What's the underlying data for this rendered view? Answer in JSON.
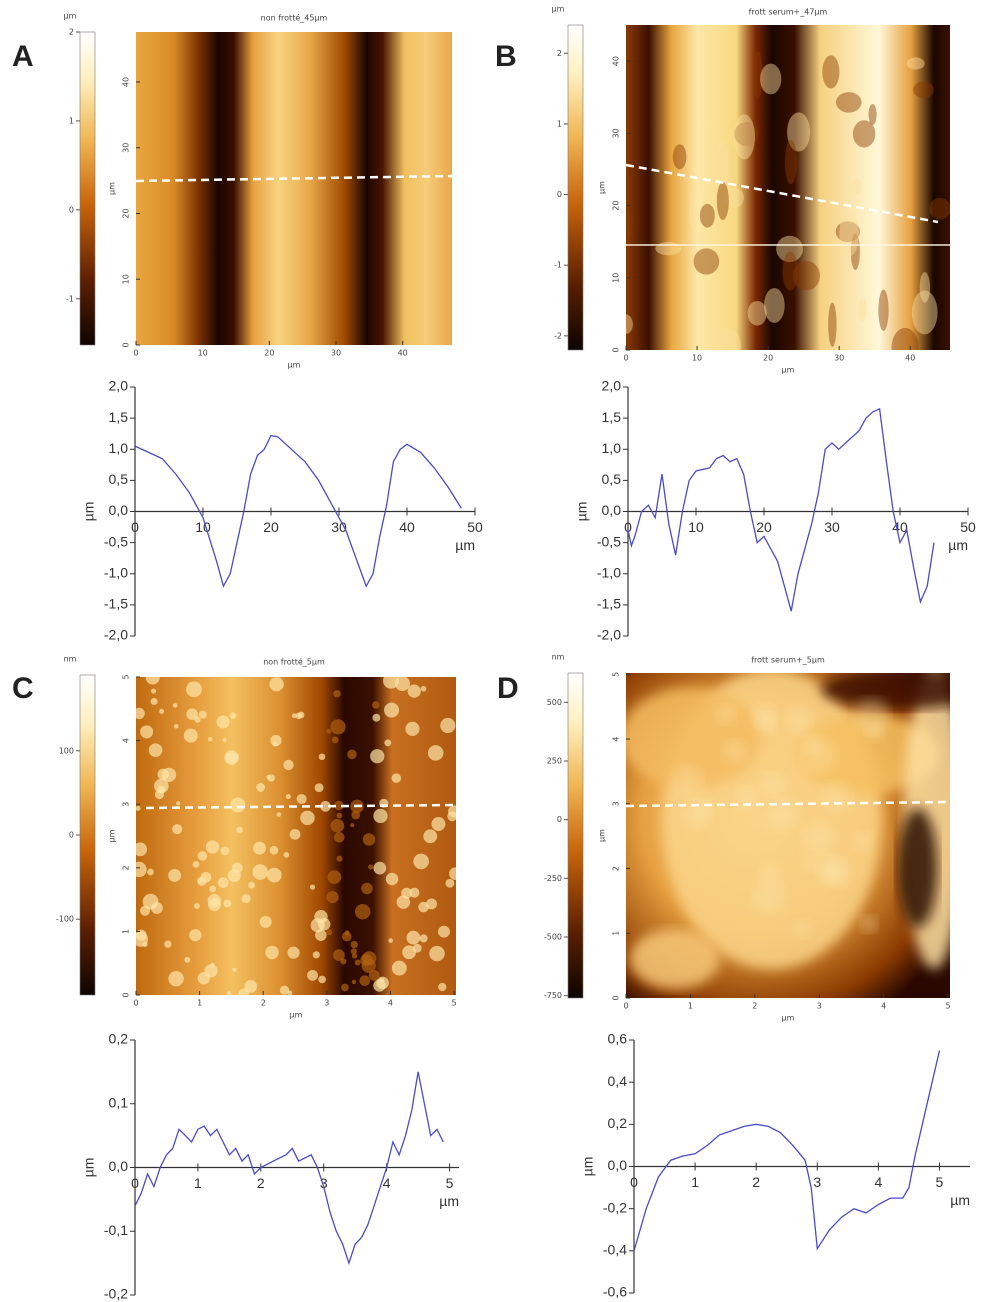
{
  "panels": [
    {
      "label": "A",
      "image": {
        "title": "non frotté_45µm",
        "xlabel": "µm",
        "ylabel": "µm",
        "xlim": [
          0,
          47.4
        ],
        "ylim": [
          0,
          47.6
        ],
        "xticks": [
          0,
          10,
          20,
          30,
          40
        ],
        "yticks": [
          0,
          10,
          20,
          30,
          40
        ],
        "colorbar": {
          "unit": "µm",
          "clim": [
            -1.52,
            2
          ],
          "ticks": [
            2,
            1,
            0,
            -1
          ]
        }
      }
    },
    {
      "label": "B",
      "image": {
        "title": "frott serum+_47µm",
        "xlabel": "µm",
        "ylabel": "µm",
        "xlim": [
          0,
          45.6
        ],
        "ylim": [
          0,
          45
        ],
        "xticks": [
          0,
          10,
          20,
          30,
          40
        ],
        "yticks": [
          0,
          10,
          20,
          30,
          40
        ],
        "colorbar": {
          "unit": "µm",
          "clim": [
            -2.2,
            2.4
          ],
          "ticks": [
            2,
            1,
            0,
            -1,
            -2
          ]
        }
      }
    },
    {
      "label": "C",
      "image": {
        "title": "non frotté_5µm",
        "xlabel": "µm",
        "ylabel": "µm",
        "xlim": [
          0,
          5.03
        ],
        "ylim": [
          0,
          5
        ],
        "xticks": [
          0,
          1,
          2,
          3,
          4,
          5
        ],
        "yticks": [
          0,
          1,
          2,
          3,
          4,
          5
        ],
        "colorbar": {
          "unit": "nm",
          "clim": [
            -190,
            190
          ],
          "ticks": [
            100,
            0,
            -100
          ]
        }
      }
    },
    {
      "label": "D",
      "image": {
        "title": "frott serum+_5µm",
        "xlabel": "µm",
        "ylabel": "µm",
        "xlim": [
          0,
          5.03
        ],
        "ylim": [
          0,
          5.02
        ],
        "xticks": [
          0,
          1,
          2,
          3,
          4,
          5
        ],
        "yticks": [
          0,
          1,
          2,
          3,
          4,
          5
        ],
        "colorbar": {
          "unit": "nm",
          "clim": [
            -760,
            625
          ],
          "ticks": [
            500,
            250,
            0,
            -250,
            -500,
            -750
          ]
        }
      }
    }
  ],
  "chart_data": [
    {
      "type": "line",
      "xlabel": "µm",
      "ylabel": "µm",
      "color": "#4b4bc8",
      "xlim": [
        0,
        50
      ],
      "ylim": [
        -2,
        2
      ],
      "xticks": [
        0,
        10,
        20,
        30,
        40,
        50
      ],
      "yticks": [
        {
          "value": -2,
          "label": "-2,0"
        },
        {
          "value": -1.5,
          "label": "-1,5"
        },
        {
          "value": -1,
          "label": "-1,0"
        },
        {
          "value": -0.5,
          "label": "-0,5"
        },
        {
          "value": 0,
          "label": "0,0"
        },
        {
          "value": 0.5,
          "label": "0,5"
        },
        {
          "value": 1,
          "label": "1,0"
        },
        {
          "value": 1.5,
          "label": "1,5"
        },
        {
          "value": 2,
          "label": "2,0"
        }
      ],
      "x": [
        0,
        2,
        4,
        6,
        8,
        10,
        12,
        13,
        14,
        15,
        16,
        17,
        18,
        19,
        20,
        21,
        23,
        25,
        27,
        29,
        31,
        33,
        34,
        35,
        36,
        37,
        38,
        39,
        40,
        42,
        44,
        46,
        48
      ],
      "values": [
        1.05,
        0.95,
        0.85,
        0.6,
        0.3,
        -0.1,
        -0.8,
        -1.2,
        -1.0,
        -0.5,
        0.0,
        0.6,
        0.9,
        1.0,
        1.22,
        1.2,
        1.0,
        0.8,
        0.5,
        0.1,
        -0.3,
        -0.9,
        -1.2,
        -1.0,
        -0.4,
        0.1,
        0.8,
        1.0,
        1.08,
        0.95,
        0.7,
        0.4,
        0.05
      ]
    },
    {
      "type": "line",
      "xlabel": "µm",
      "ylabel": "µm",
      "color": "#4b4bc8",
      "xlim": [
        0,
        50
      ],
      "ylim": [
        -2,
        2
      ],
      "xticks": [
        0,
        10,
        20,
        30,
        40,
        50
      ],
      "yticks": [
        {
          "value": -2,
          "label": "-2,0"
        },
        {
          "value": -1.5,
          "label": "-1,5"
        },
        {
          "value": -1,
          "label": "-1,0"
        },
        {
          "value": -0.5,
          "label": "-0,5"
        },
        {
          "value": 0,
          "label": "0,0"
        },
        {
          "value": 0.5,
          "label": "0,5"
        },
        {
          "value": 1,
          "label": "1,0"
        },
        {
          "value": 1.5,
          "label": "1,5"
        },
        {
          "value": 2,
          "label": "2,0"
        }
      ],
      "x": [
        0,
        0.5,
        1,
        2,
        3,
        4,
        5,
        6,
        7,
        8,
        9,
        10,
        12,
        13,
        14,
        15,
        16,
        17,
        18,
        19,
        20,
        21,
        22,
        23,
        24,
        25,
        26,
        27,
        28,
        29,
        30,
        31,
        32,
        33,
        34,
        35,
        36,
        37,
        38,
        39,
        40,
        41,
        42,
        43,
        44,
        45
      ],
      "values": [
        -0.3,
        -0.55,
        -0.4,
        0.0,
        0.1,
        -0.1,
        0.6,
        -0.2,
        -0.7,
        0.0,
        0.5,
        0.65,
        0.7,
        0.85,
        0.9,
        0.8,
        0.85,
        0.6,
        0.0,
        -0.5,
        -0.4,
        -0.6,
        -0.8,
        -1.2,
        -1.6,
        -1.0,
        -0.6,
        -0.2,
        0.3,
        1.0,
        1.1,
        1.0,
        1.1,
        1.2,
        1.3,
        1.5,
        1.6,
        1.65,
        0.8,
        0.0,
        -0.5,
        -0.3,
        -0.9,
        -1.45,
        -1.2,
        -0.5
      ]
    },
    {
      "type": "line",
      "xlabel": "µm",
      "ylabel": "µm",
      "color": "#4b4bc8",
      "xlim": [
        0,
        5.15
      ],
      "ylim": [
        -0.2,
        0.2
      ],
      "xticks": [
        0,
        1,
        2,
        3,
        4,
        5
      ],
      "yticks": [
        {
          "value": -0.2,
          "label": "-0,2"
        },
        {
          "value": -0.1,
          "label": "-0,1"
        },
        {
          "value": 0,
          "label": "0,0"
        },
        {
          "value": 0.1,
          "label": "0,1"
        },
        {
          "value": 0.2,
          "label": "0,2"
        }
      ],
      "x": [
        0,
        0.1,
        0.2,
        0.3,
        0.4,
        0.5,
        0.6,
        0.7,
        0.8,
        0.9,
        1.0,
        1.1,
        1.2,
        1.3,
        1.4,
        1.5,
        1.6,
        1.7,
        1.8,
        1.9,
        2.0,
        2.2,
        2.4,
        2.5,
        2.6,
        2.8,
        2.9,
        3.0,
        3.1,
        3.2,
        3.3,
        3.4,
        3.5,
        3.6,
        3.7,
        3.8,
        3.9,
        4.0,
        4.1,
        4.2,
        4.3,
        4.4,
        4.5,
        4.6,
        4.7,
        4.8,
        4.9
      ],
      "values": [
        -0.06,
        -0.04,
        -0.01,
        -0.03,
        0.0,
        0.02,
        0.03,
        0.06,
        0.05,
        0.04,
        0.06,
        0.065,
        0.05,
        0.06,
        0.04,
        0.02,
        0.03,
        0.01,
        0.02,
        -0.01,
        0.0,
        0.01,
        0.02,
        0.03,
        0.01,
        0.02,
        0.0,
        -0.03,
        -0.07,
        -0.1,
        -0.12,
        -0.15,
        -0.12,
        -0.11,
        -0.09,
        -0.06,
        -0.03,
        0.0,
        0.04,
        0.02,
        0.05,
        0.09,
        0.15,
        0.1,
        0.05,
        0.06,
        0.04
      ]
    },
    {
      "type": "line",
      "xlabel": "µm",
      "ylabel": "µm",
      "color": "#4b4bc8",
      "xlim": [
        0,
        5.5
      ],
      "ylim": [
        -0.6,
        0.6
      ],
      "xticks": [
        0,
        1,
        2,
        3,
        4,
        5
      ],
      "yticks": [
        {
          "value": -0.6,
          "label": "-0,6"
        },
        {
          "value": -0.4,
          "label": "-0,4"
        },
        {
          "value": -0.2,
          "label": "-0,2"
        },
        {
          "value": 0,
          "label": "0,0"
        },
        {
          "value": 0.2,
          "label": "0,2"
        },
        {
          "value": 0.4,
          "label": "0,4"
        },
        {
          "value": 0.6,
          "label": "0,6"
        }
      ],
      "x": [
        0,
        0.1,
        0.2,
        0.4,
        0.6,
        0.8,
        1.0,
        1.2,
        1.4,
        1.6,
        1.8,
        2.0,
        2.2,
        2.4,
        2.6,
        2.8,
        2.9,
        3.0,
        3.2,
        3.4,
        3.6,
        3.8,
        4.0,
        4.2,
        4.4,
        4.5,
        4.6,
        4.8,
        5.0
      ],
      "values": [
        -0.4,
        -0.3,
        -0.2,
        -0.05,
        0.03,
        0.05,
        0.06,
        0.1,
        0.15,
        0.17,
        0.19,
        0.2,
        0.19,
        0.16,
        0.1,
        0.03,
        -0.1,
        -0.39,
        -0.3,
        -0.24,
        -0.2,
        -0.22,
        -0.18,
        -0.15,
        -0.15,
        -0.1,
        0.05,
        0.3,
        0.55
      ]
    }
  ]
}
